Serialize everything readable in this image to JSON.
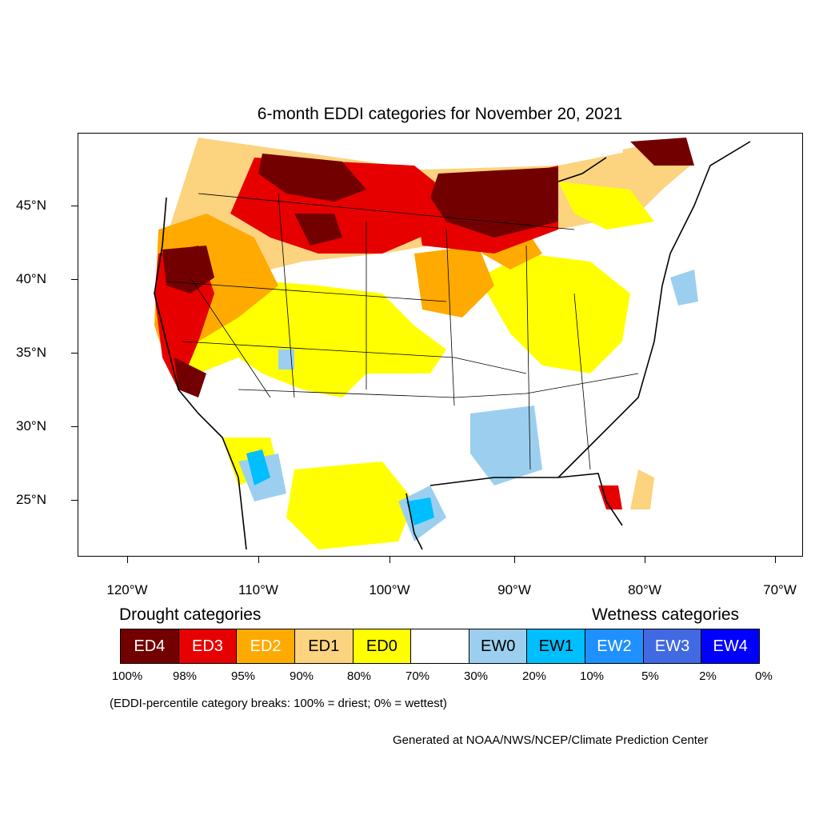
{
  "title": "6-month EDDI categories for November 20, 2021",
  "lat_labels": [
    "45°N",
    "40°N",
    "35°N",
    "30°N",
    "25°N"
  ],
  "lon_labels": [
    "120°W",
    "110°W",
    "100°W",
    "90°W",
    "80°W",
    "70°W"
  ],
  "drought_heading": "Drought categories",
  "wetness_heading": "Wetness categories",
  "legend": [
    {
      "label": "ED4",
      "color": "#730000",
      "text_color": "#ffffff"
    },
    {
      "label": "ED3",
      "color": "#e60000",
      "text_color": "#ffffff"
    },
    {
      "label": "ED2",
      "color": "#ffaa00",
      "text_color": "#ffffff"
    },
    {
      "label": "ED1",
      "color": "#fcd37f",
      "text_color": "#000000"
    },
    {
      "label": "ED0",
      "color": "#ffff00",
      "text_color": "#000000"
    },
    {
      "label": "",
      "color": "#ffffff",
      "text_color": "#000000"
    },
    {
      "label": "EW0",
      "color": "#9ccfef",
      "text_color": "#000000"
    },
    {
      "label": "EW1",
      "color": "#00bfff",
      "text_color": "#000000"
    },
    {
      "label": "EW2",
      "color": "#1e90ff",
      "text_color": "#ffffff"
    },
    {
      "label": "EW3",
      "color": "#4169e1",
      "text_color": "#ffffff"
    },
    {
      "label": "EW4",
      "color": "#0000ff",
      "text_color": "#ffffff"
    }
  ],
  "percent_breaks": [
    "100%",
    "98%",
    "95%",
    "90%",
    "80%",
    "70%",
    "30%",
    "20%",
    "10%",
    "5%",
    "2%",
    "0%"
  ],
  "note": "(EDDI-percentile category breaks: 100% = driest; 0% = wettest)",
  "credit": "Generated at NOAA/NWS/NCEP/Climate Prediction Center"
}
